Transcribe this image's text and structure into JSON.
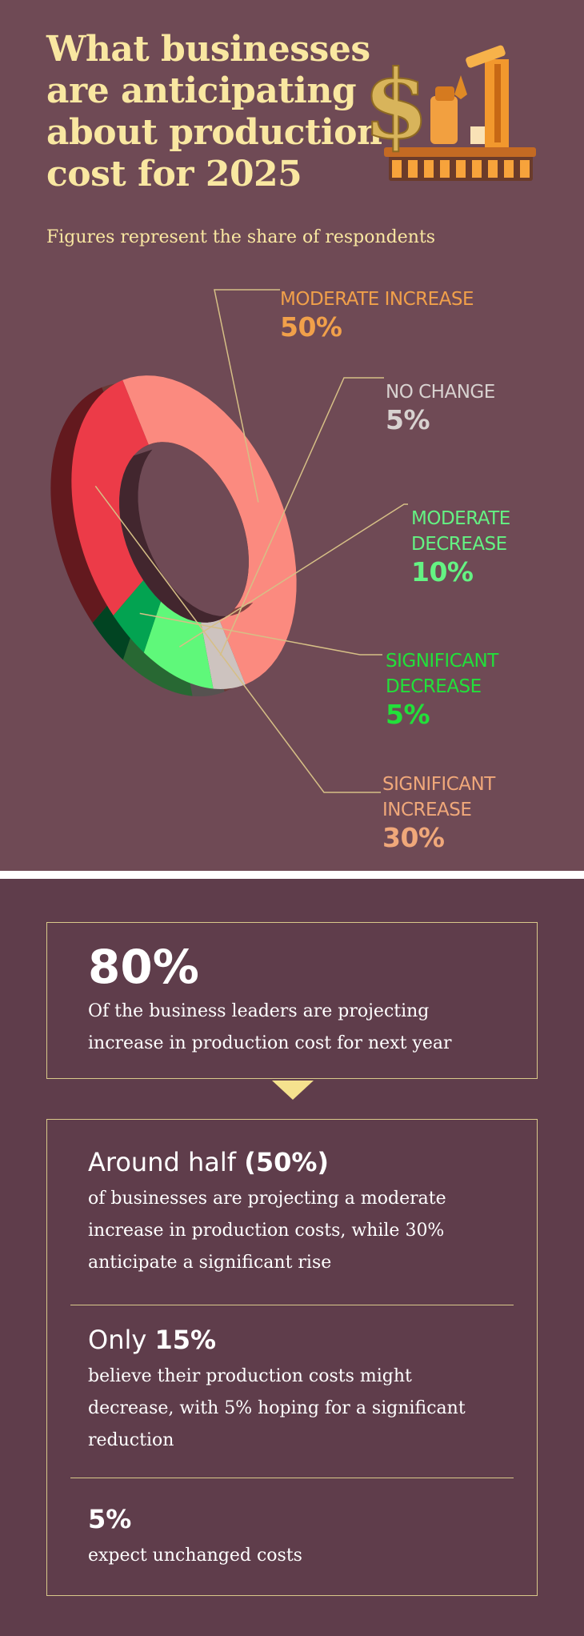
{
  "header": {
    "title": "What businesses are anticipating about production cost for 2025",
    "subtitle": "Figures represent the share of respondents"
  },
  "colors": {
    "moderate_increase": "#fb8a7f",
    "significant_increase": "#ec3b48",
    "no_change": "#cdc3bf",
    "moderate_decrease": "#5ff87a",
    "significant_decrease": "#03a351",
    "label_increase": "#f1a04a",
    "label_significant_increase": "#f0a87a",
    "label_no_change": "#d8d2d0",
    "label_moderate_decrease": "#64f383",
    "label_significant_decrease": "#22e03a"
  },
  "chart_data": {
    "type": "pie",
    "style": "3d-donut",
    "title": "",
    "unit": "%",
    "categories": [
      "MODERATE INCREASE",
      "NO CHANGE",
      "MODERATE DECREASE",
      "SIGNIFICANT DECREASE",
      "SIGNIFICANT INCREASE"
    ],
    "values": [
      50,
      5,
      10,
      5,
      30
    ],
    "labels": [
      {
        "name": "MODERATE INCREASE",
        "value": "50%"
      },
      {
        "name": "NO CHANGE",
        "value": "5%"
      },
      {
        "name": "MODERATE DECREASE",
        "value": "10%"
      },
      {
        "name": "SIGNIFICANT DECREASE",
        "value": "5%"
      },
      {
        "name": "SIGNIFICANT INCREASE",
        "value": "30%"
      }
    ]
  },
  "summary": {
    "headline_value": "80%",
    "headline_text": "Of the business leaders are projecting increase in production cost for next year",
    "items": [
      {
        "lead": "Around half ",
        "bold": "(50%)",
        "text": "of businesses are projecting a moderate increase in production costs, while 30% anticipate a significant rise"
      },
      {
        "lead": "Only ",
        "bold": "15%",
        "text": "believe their production costs might decrease, with 5% hoping for a significant reduction"
      },
      {
        "lead": "",
        "bold": "5%",
        "text": "expect unchanged costs"
      }
    ]
  }
}
